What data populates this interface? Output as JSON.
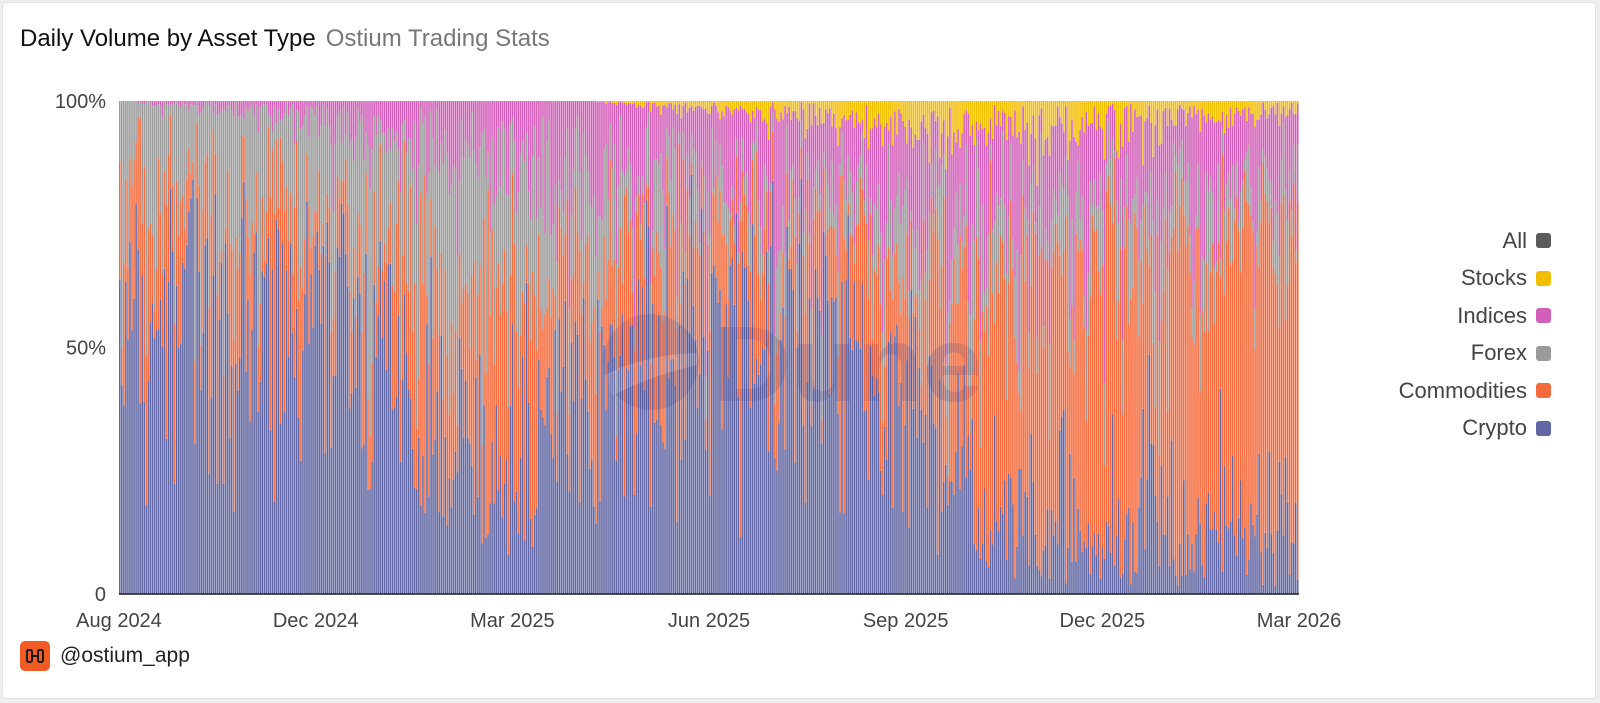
{
  "header": {
    "title": "Daily Volume by Asset Type",
    "subtitle": "Ostium Trading Stats"
  },
  "footer": {
    "handle": "@ostium_app",
    "logo_icon": "ostium-logo-icon",
    "logo_color": "#f25c24"
  },
  "watermark": {
    "text": "Dune",
    "icon": "dune-logo-icon"
  },
  "legend": [
    {
      "label": "All",
      "color": "#5b5b5b"
    },
    {
      "label": "Stocks",
      "color": "#f3be00"
    },
    {
      "label": "Indices",
      "color": "#d25fb9"
    },
    {
      "label": "Forex",
      "color": "#9a9a9a"
    },
    {
      "label": "Commodities",
      "color": "#f46a3c"
    },
    {
      "label": "Crypto",
      "color": "#6166a4"
    }
  ],
  "chart_data": {
    "type": "bar",
    "stacked": true,
    "normalized": true,
    "x_ticks": [
      "Aug 2024",
      "Dec 2024",
      "Mar 2025",
      "Jun 2025",
      "Sep 2025",
      "Dec 2025",
      "Mar 2026"
    ],
    "y_ticks": [
      "0",
      "50%",
      "100%"
    ],
    "ylim": [
      0,
      100
    ],
    "grid": false,
    "legend_position": "right",
    "series_order_bottom_to_top": [
      "Crypto",
      "Commodities",
      "Forex",
      "Indices",
      "Stocks"
    ],
    "series_colors": {
      "Crypto": "#6166a4",
      "Commodities": "#f46a3c",
      "Forex": "#9a9a9a",
      "Indices": "#d25fb9",
      "Stocks": "#f3be00"
    },
    "trend_points": [
      {
        "month": "Aug 2024",
        "Crypto": 55,
        "Commodities": 20,
        "Forex": 25,
        "Indices": 0,
        "Stocks": 0
      },
      {
        "month": "Oct 2024",
        "Crypto": 58,
        "Commodities": 18,
        "Forex": 22,
        "Indices": 2,
        "Stocks": 0
      },
      {
        "month": "Dec 2024",
        "Crypto": 55,
        "Commodities": 14,
        "Forex": 25,
        "Indices": 6,
        "Stocks": 0
      },
      {
        "month": "Feb 2025",
        "Crypto": 22,
        "Commodities": 32,
        "Forex": 34,
        "Indices": 12,
        "Stocks": 0
      },
      {
        "month": "Apr 2025",
        "Crypto": 40,
        "Commodities": 22,
        "Forex": 18,
        "Indices": 20,
        "Stocks": 0
      },
      {
        "month": "Jun 2025",
        "Crypto": 52,
        "Commodities": 18,
        "Forex": 10,
        "Indices": 18,
        "Stocks": 2
      },
      {
        "month": "Aug 2025",
        "Crypto": 55,
        "Commodities": 17,
        "Forex": 8,
        "Indices": 17,
        "Stocks": 3
      },
      {
        "month": "Oct 2025",
        "Crypto": 22,
        "Commodities": 35,
        "Forex": 17,
        "Indices": 20,
        "Stocks": 6
      },
      {
        "month": "Dec 2025",
        "Crypto": 12,
        "Commodities": 50,
        "Forex": 14,
        "Indices": 18,
        "Stocks": 6
      },
      {
        "month": "Feb 2026",
        "Crypto": 12,
        "Commodities": 55,
        "Forex": 12,
        "Indices": 18,
        "Stocks": 3
      },
      {
        "month": "Mar 2026",
        "Crypto": 10,
        "Commodities": 60,
        "Forex": 10,
        "Indices": 18,
        "Stocks": 2
      }
    ]
  }
}
